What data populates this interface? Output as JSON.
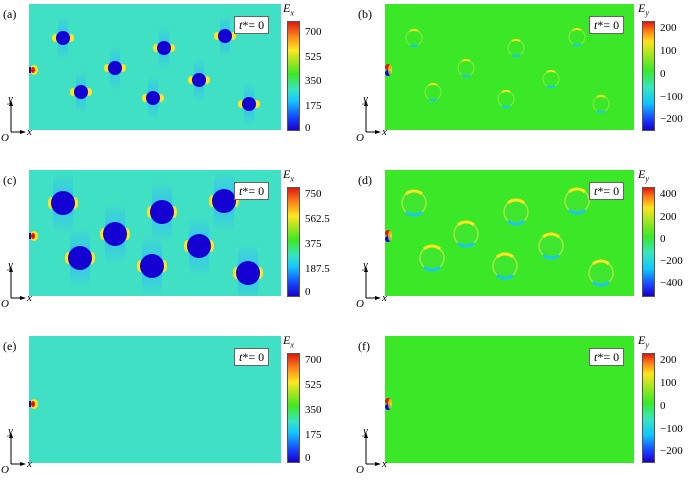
{
  "panels": [
    {
      "label": "(a)",
      "time_label": "t*= 0",
      "time_var": "t",
      "time_rest": "*= 0",
      "quantity": "E",
      "subscript": "x",
      "kind": "ex",
      "colorbar_ticks": [
        "700",
        "525",
        "350",
        "175",
        "0"
      ],
      "axis": {
        "y": "y",
        "x": "x",
        "origin": "O"
      }
    },
    {
      "label": "(b)",
      "time_label": "t*= 0",
      "time_var": "t",
      "time_rest": "*= 0",
      "quantity": "E",
      "subscript": "y",
      "kind": "ey",
      "colorbar_ticks": [
        "200",
        "100",
        "0",
        "−100",
        "−200"
      ],
      "axis": {
        "y": "y",
        "x": "x",
        "origin": "O"
      }
    },
    {
      "label": "(c)",
      "time_label": "t*= 0",
      "time_var": "t",
      "time_rest": "*= 0",
      "quantity": "E",
      "subscript": "x",
      "kind": "ex",
      "colorbar_ticks": [
        "750",
        "562.5",
        "375",
        "187.5",
        "0"
      ],
      "axis": {
        "y": "y",
        "x": "x",
        "origin": "O"
      }
    },
    {
      "label": "(d)",
      "time_label": "t*= 0",
      "time_var": "t",
      "time_rest": "*= 0",
      "quantity": "E",
      "subscript": "y",
      "kind": "ey",
      "colorbar_ticks": [
        "400",
        "200",
        "0",
        "−200",
        "−400"
      ],
      "axis": {
        "y": "y",
        "x": "x",
        "origin": "O"
      }
    },
    {
      "label": "(e)",
      "time_label": "t*= 0",
      "time_var": "t",
      "time_rest": "*= 0",
      "quantity": "E",
      "subscript": "x",
      "kind": "ex",
      "colorbar_ticks": [
        "700",
        "525",
        "350",
        "175",
        "0"
      ],
      "axis": {
        "y": "y",
        "x": "x",
        "origin": "O"
      }
    },
    {
      "label": "(f)",
      "time_label": "t*= 0",
      "time_var": "t",
      "time_rest": "*= 0",
      "quantity": "E",
      "subscript": "y",
      "kind": "ey",
      "colorbar_ticks": [
        "200",
        "100",
        "0",
        "−100",
        "−200"
      ],
      "axis": {
        "y": "y",
        "x": "x",
        "origin": "O"
      }
    }
  ],
  "colors": {
    "ex_background": "#40e0c4",
    "ey_background": "#3be827",
    "particle_blue": "#1400d2",
    "halo_cyan": "#18c8f0",
    "highlight_yellow": "#ffe41e",
    "highlight_red": "#e4150f"
  }
}
